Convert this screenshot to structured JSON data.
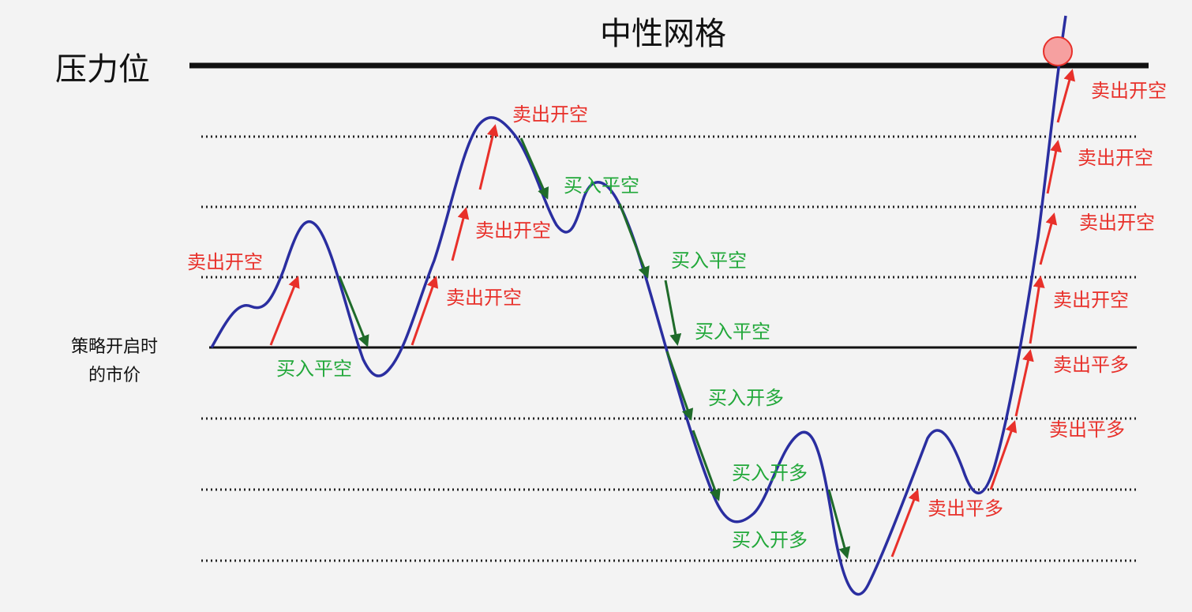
{
  "title": "中性网格",
  "resistance_label": "压力位",
  "start_price_label": [
    "策略开启时",
    "的市价"
  ],
  "annotations": [
    "卖出开空",
    "买入平空",
    "卖出开空",
    "卖出开空",
    "卖出开空",
    "买入平空",
    "买入平空",
    "买入平空",
    "买入开多",
    "买入开多",
    "买入开多",
    "卖出平多",
    "卖出平多",
    "卖出平多",
    "卖出开空",
    "卖出开空",
    "卖出开空",
    "卖出开空"
  ]
}
